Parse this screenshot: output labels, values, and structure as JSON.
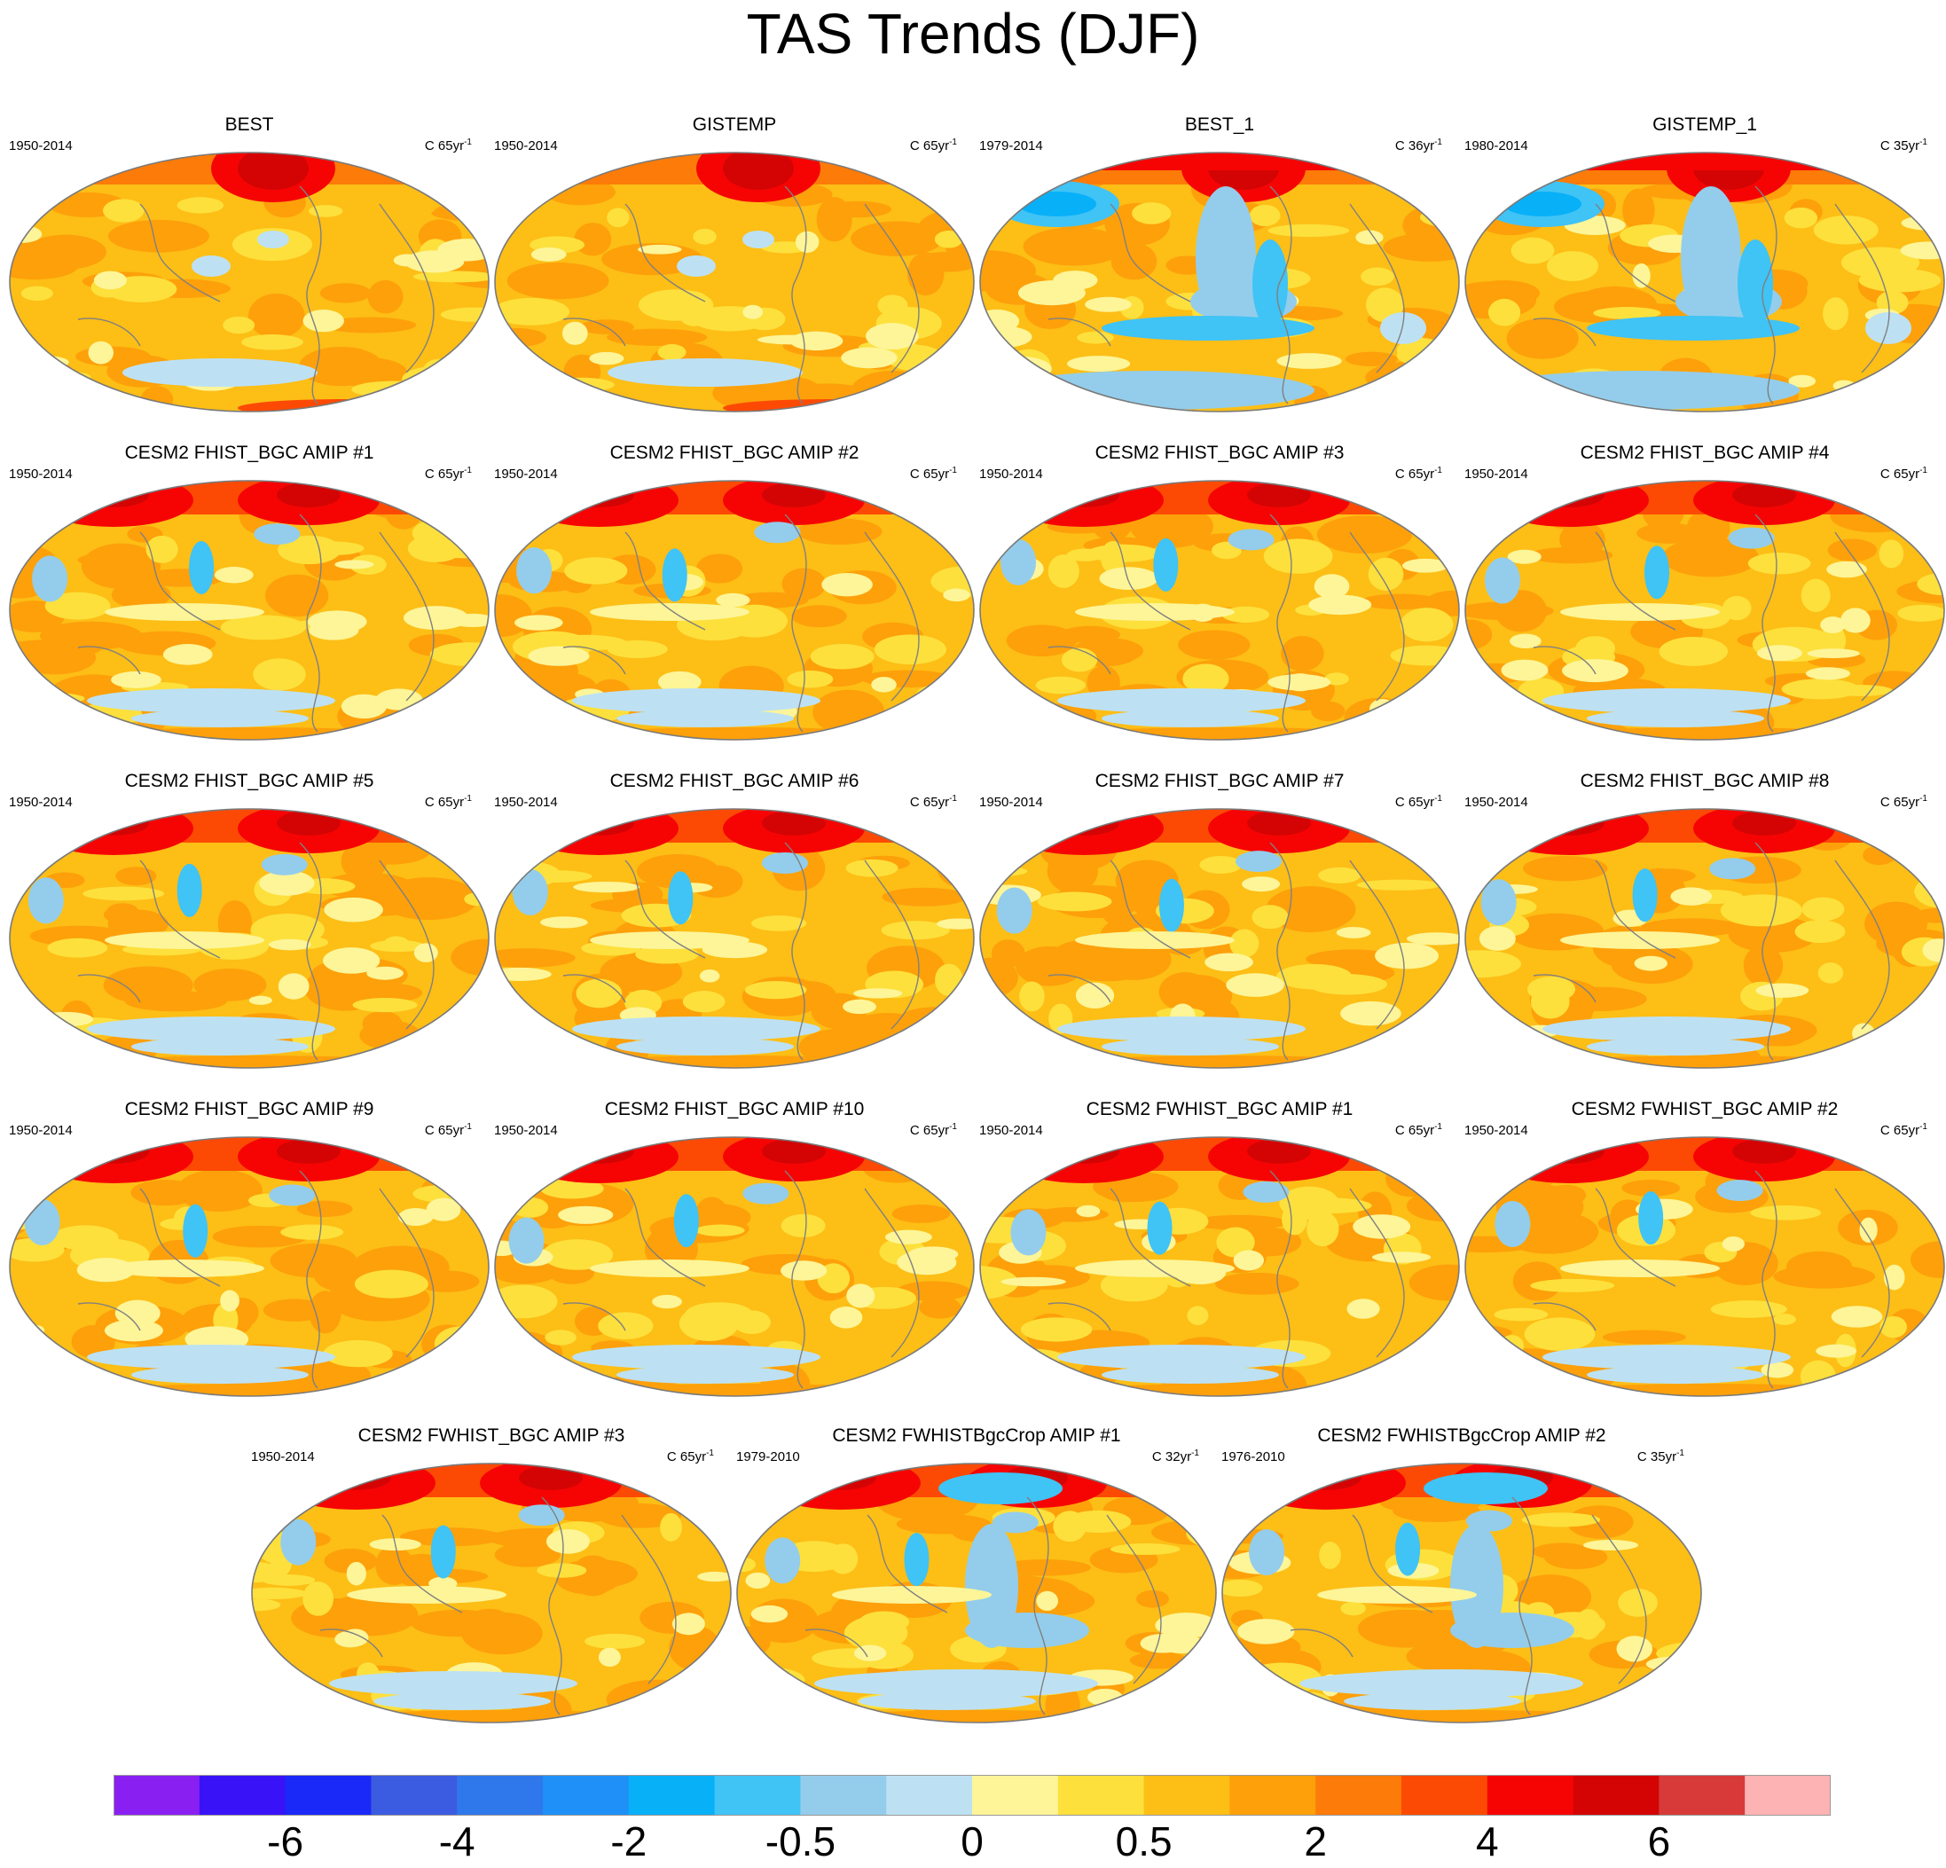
{
  "title": "TAS Trends (DJF)",
  "units_label": "C",
  "panels": [
    {
      "title": "BEST",
      "period": "1950-2014",
      "years": "65",
      "pattern": "obs"
    },
    {
      "title": "GISTEMP",
      "period": "1950-2014",
      "years": "65",
      "pattern": "obs"
    },
    {
      "title": "BEST_1",
      "period": "1979-2014",
      "years": "36",
      "pattern": "obs_short"
    },
    {
      "title": "GISTEMP_1",
      "period": "1980-2014",
      "years": "35",
      "pattern": "obs_short"
    },
    {
      "title": "CESM2 FHIST_BGC AMIP #1",
      "period": "1950-2014",
      "years": "65",
      "pattern": "model"
    },
    {
      "title": "CESM2 FHIST_BGC AMIP #2",
      "period": "1950-2014",
      "years": "65",
      "pattern": "model"
    },
    {
      "title": "CESM2 FHIST_BGC AMIP #3",
      "period": "1950-2014",
      "years": "65",
      "pattern": "model"
    },
    {
      "title": "CESM2 FHIST_BGC AMIP #4",
      "period": "1950-2014",
      "years": "65",
      "pattern": "model"
    },
    {
      "title": "CESM2 FHIST_BGC AMIP #5",
      "period": "1950-2014",
      "years": "65",
      "pattern": "model"
    },
    {
      "title": "CESM2 FHIST_BGC AMIP #6",
      "period": "1950-2014",
      "years": "65",
      "pattern": "model"
    },
    {
      "title": "CESM2 FHIST_BGC AMIP #7",
      "period": "1950-2014",
      "years": "65",
      "pattern": "model"
    },
    {
      "title": "CESM2 FHIST_BGC AMIP #8",
      "period": "1950-2014",
      "years": "65",
      "pattern": "model"
    },
    {
      "title": "CESM2 FHIST_BGC AMIP #9",
      "period": "1950-2014",
      "years": "65",
      "pattern": "model"
    },
    {
      "title": "CESM2 FHIST_BGC AMIP #10",
      "period": "1950-2014",
      "years": "65",
      "pattern": "model"
    },
    {
      "title": "CESM2 FWHIST_BGC AMIP #1",
      "period": "1950-2014",
      "years": "65",
      "pattern": "model"
    },
    {
      "title": "CESM2 FWHIST_BGC AMIP #2",
      "period": "1950-2014",
      "years": "65",
      "pattern": "model"
    },
    {
      "title": "CESM2 FWHIST_BGC AMIP #3",
      "period": "1950-2014",
      "years": "65",
      "pattern": "model"
    },
    {
      "title": "CESM2 FWHISTBgcCrop AMIP #1",
      "period": "1979-2010",
      "years": "32",
      "pattern": "model_short"
    },
    {
      "title": "CESM2 FWHISTBgcCrop AMIP #2",
      "period": "1976-2010",
      "years": "35",
      "pattern": "model_short"
    }
  ],
  "colorbar": {
    "colors": [
      "#8a1ff2",
      "#3a12f8",
      "#1a28f8",
      "#3b5be0",
      "#2f78ec",
      "#1f90f8",
      "#08b0f8",
      "#40c3f5",
      "#94cdeb",
      "#bde1f3",
      "#fdf598",
      "#fde03c",
      "#fdbe16",
      "#fda00a",
      "#fd7b08",
      "#fc4a04",
      "#f60404",
      "#d40404",
      "#d83a3a",
      "#fdb3b3"
    ],
    "tick_labels": [
      "-6",
      "-4",
      "-2",
      "-0.5",
      "0",
      "0.5",
      "2",
      "4",
      "6"
    ],
    "tick_boundaries": [
      2,
      4,
      6,
      8,
      10,
      12,
      14,
      16,
      18
    ]
  }
}
